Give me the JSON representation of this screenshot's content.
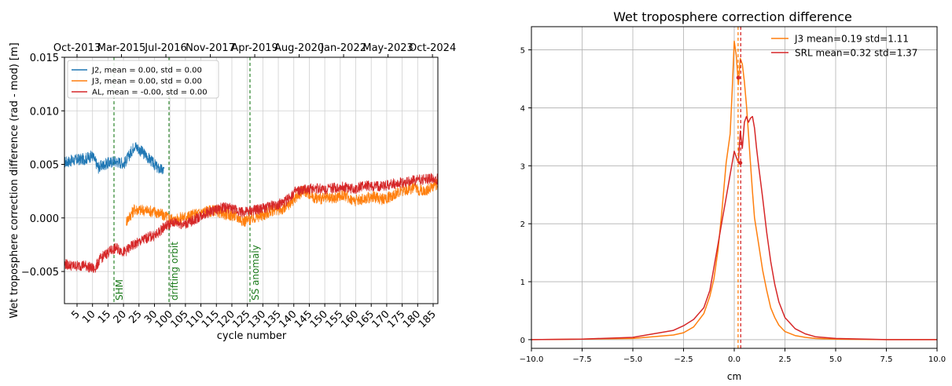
{
  "chart_data": [
    {
      "type": "line",
      "title": "",
      "xlabel": "cycle number",
      "ylabel": "Wet troposphere correction  difference (rad - mod) [m]",
      "xlim": [
        0,
        187
      ],
      "ylim": [
        -0.008,
        0.015
      ],
      "grid": true,
      "legend_position": "top-left",
      "x_ticks": [
        "5",
        "10",
        "15",
        "20",
        "25",
        "30",
        "100",
        "105",
        "110",
        "115",
        "120",
        "125",
        "130",
        "135",
        "140",
        "145",
        "150",
        "155",
        "160",
        "165",
        "170",
        "175",
        "180",
        "185"
      ],
      "top_ticks": [
        "Oct-2013",
        "Mar-2015",
        "Jul-2016",
        "Nov-2017",
        "Apr-2019",
        "Aug-2020",
        "Jan-2022",
        "May-2023",
        "Oct-2024"
      ],
      "y_ticks": [
        "0.015",
        "0.010",
        "0.005",
        "0.000",
        "−0.005"
      ],
      "events": [
        {
          "label": "SHM",
          "x": 15.5
        },
        {
          "label": "drifting orbit",
          "x": 34.5
        },
        {
          "label": "SS anomaly",
          "x": 63
        }
      ],
      "series": [
        {
          "name": "J2, mean = 0.00, std = 0.00",
          "color": "#1f77b4",
          "x": [
            0,
            5,
            10,
            14,
            17,
            20,
            25,
            30,
            33,
            35,
            38,
            41,
            44,
            47,
            50
          ],
          "y": [
            0.0052,
            0.0054,
            0.0055,
            0.0058,
            0.0047,
            0.005,
            0.0053,
            0.0051,
            0.006,
            0.0068,
            0.0063,
            0.0058,
            0.0052,
            0.0046,
            0.0044
          ]
        },
        {
          "name": "J3, mean = 0.00, std = 0.00",
          "color": "#ff7f0e",
          "x": [
            31,
            35,
            40,
            45,
            50,
            55,
            60,
            65,
            70,
            75,
            80,
            85,
            90,
            95,
            100,
            105,
            110,
            115,
            120,
            125,
            130,
            135,
            140,
            145,
            150,
            155,
            160,
            165,
            170,
            175,
            180,
            185,
            187
          ],
          "y": [
            -0.0003,
            0.0008,
            0.0007,
            0.0006,
            0.0002,
            -0.0002,
            0.0001,
            0.0003,
            0.0006,
            0.0007,
            0.0004,
            0.0002,
            -0.0003,
            0.0,
            0.0003,
            0.0008,
            0.0008,
            0.0018,
            0.0026,
            0.0019,
            0.0018,
            0.0018,
            0.0022,
            0.0016,
            0.0018,
            0.002,
            0.0017,
            0.0022,
            0.0026,
            0.0028,
            0.0025,
            0.003,
            0.0031
          ]
        },
        {
          "name": "AL, mean = -0.00, std = 0.00",
          "color": "#d62728",
          "x": [
            0,
            5,
            10,
            15,
            18,
            22,
            26,
            30,
            34,
            38,
            42,
            46,
            50,
            55,
            60,
            65,
            70,
            75,
            80,
            85,
            90,
            95,
            100,
            105,
            110,
            115,
            120,
            125,
            130,
            135,
            140,
            145,
            150,
            155,
            160,
            165,
            170,
            175,
            180,
            185,
            187
          ],
          "y": [
            -0.0043,
            -0.0045,
            -0.0044,
            -0.0048,
            -0.0038,
            -0.0032,
            -0.0028,
            -0.0032,
            -0.0026,
            -0.0022,
            -0.0018,
            -0.0016,
            -0.0008,
            -0.0004,
            -0.0006,
            -0.0002,
            0.0004,
            0.0007,
            0.001,
            0.0008,
            0.0005,
            0.0007,
            0.0009,
            0.0012,
            0.0014,
            0.0024,
            0.0026,
            0.0028,
            0.0027,
            0.0028,
            0.0029,
            0.0027,
            0.003,
            0.0029,
            0.003,
            0.0032,
            0.0033,
            0.0035,
            0.0036,
            0.0037,
            0.0036
          ]
        }
      ]
    },
    {
      "type": "line",
      "title": "Wet troposphere correction difference",
      "xlabel": "cm",
      "ylabel": "",
      "xlim": [
        -10,
        10
      ],
      "ylim": [
        -0.15,
        5.4
      ],
      "grid": true,
      "legend_position": "top-right",
      "x_ticks": [
        "−10.0",
        "−7.5",
        "−5.0",
        "−2.5",
        "0.0",
        "2.5",
        "5.0",
        "7.5",
        "10.0"
      ],
      "y_ticks": [
        "0",
        "1",
        "2",
        "3",
        "4",
        "5"
      ],
      "mean_lines": [
        0.19,
        0.32
      ],
      "series": [
        {
          "name": "J3  mean=0.19 std=1.11",
          "color": "#ff7f0e",
          "mean": 0.19,
          "x": [
            -10,
            -7.5,
            -5,
            -3,
            -2.5,
            -2,
            -1.5,
            -1.2,
            -1,
            -0.8,
            -0.6,
            -0.4,
            -0.2,
            -0.1,
            0.0,
            0.1,
            0.2,
            0.3,
            0.4,
            0.5,
            0.6,
            0.7,
            0.8,
            0.9,
            1.0,
            1.2,
            1.4,
            1.6,
            1.8,
            2.0,
            2.2,
            2.5,
            3.0,
            3.5,
            4.0,
            5.0,
            7.5,
            10
          ],
          "y": [
            0.0,
            0.01,
            0.02,
            0.08,
            0.12,
            0.22,
            0.45,
            0.75,
            1.05,
            1.55,
            2.25,
            3.05,
            3.55,
            4.3,
            5.15,
            4.9,
            4.4,
            4.85,
            4.75,
            4.45,
            4.05,
            3.55,
            3.05,
            2.55,
            2.1,
            1.65,
            1.2,
            0.85,
            0.55,
            0.38,
            0.25,
            0.14,
            0.07,
            0.04,
            0.02,
            0.01,
            0.0,
            0.0
          ]
        },
        {
          "name": "SRL mean=0.32 std=1.37",
          "color": "#d62728",
          "mean": 0.32,
          "x": [
            -10,
            -7.5,
            -5,
            -3,
            -2.5,
            -2,
            -1.5,
            -1.2,
            -1,
            -0.8,
            -0.6,
            -0.4,
            -0.2,
            0.0,
            0.1,
            0.2,
            0.3,
            0.4,
            0.5,
            0.6,
            0.7,
            0.8,
            0.9,
            1.0,
            1.1,
            1.2,
            1.4,
            1.6,
            1.8,
            2.0,
            2.2,
            2.5,
            3.0,
            3.5,
            4.0,
            5.0,
            7.5,
            10
          ],
          "y": [
            0.0,
            0.01,
            0.04,
            0.16,
            0.24,
            0.35,
            0.55,
            0.85,
            1.25,
            1.65,
            2.05,
            2.45,
            2.85,
            3.25,
            3.15,
            3.05,
            3.6,
            3.3,
            3.75,
            3.85,
            3.75,
            3.82,
            3.85,
            3.65,
            3.3,
            3.0,
            2.45,
            1.85,
            1.35,
            0.95,
            0.65,
            0.38,
            0.19,
            0.1,
            0.05,
            0.02,
            0.0,
            0.0
          ]
        }
      ]
    }
  ]
}
